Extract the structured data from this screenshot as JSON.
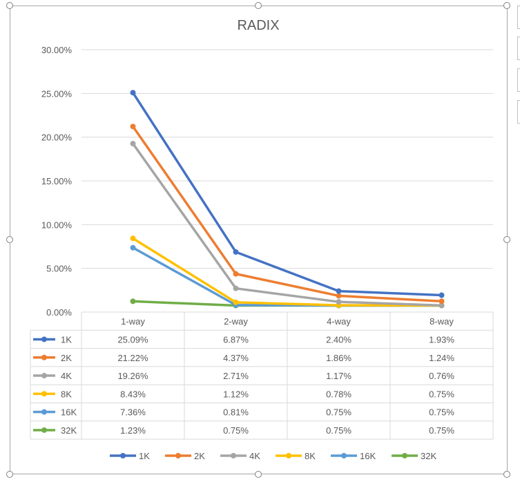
{
  "chart_data": {
    "type": "line",
    "title": "RADIX",
    "categories": [
      "1-way",
      "2-way",
      "4-way",
      "8-way"
    ],
    "y_ticks": [
      "0.00%",
      "5.00%",
      "10.00%",
      "15.00%",
      "20.00%",
      "25.00%",
      "30.00%"
    ],
    "ylim": [
      0,
      30
    ],
    "grid": true,
    "legend_position": "bottom",
    "data_table": true,
    "series": [
      {
        "name": "1K",
        "color": "#4472c4",
        "values": [
          25.09,
          6.87,
          2.4,
          1.93
        ],
        "labels": [
          "25.09%",
          "6.87%",
          "2.40%",
          "1.93%"
        ]
      },
      {
        "name": "2K",
        "color": "#ed7d31",
        "values": [
          21.22,
          4.37,
          1.86,
          1.24
        ],
        "labels": [
          "21.22%",
          "4.37%",
          "1.86%",
          "1.24%"
        ]
      },
      {
        "name": "4K",
        "color": "#a5a5a5",
        "values": [
          19.26,
          2.71,
          1.17,
          0.76
        ],
        "labels": [
          "19.26%",
          "2.71%",
          "1.17%",
          "0.76%"
        ]
      },
      {
        "name": "8K",
        "color": "#ffc000",
        "values": [
          8.43,
          1.12,
          0.78,
          0.75
        ],
        "labels": [
          "8.43%",
          "1.12%",
          "0.78%",
          "0.75%"
        ]
      },
      {
        "name": "16K",
        "color": "#5b9bd5",
        "values": [
          7.36,
          0.81,
          0.75,
          0.75
        ],
        "labels": [
          "7.36%",
          "0.81%",
          "0.75%",
          "0.75%"
        ]
      },
      {
        "name": "32K",
        "color": "#70ad47",
        "values": [
          1.23,
          0.75,
          0.75,
          0.75
        ],
        "labels": [
          "1.23%",
          "0.75%",
          "0.75%",
          "0.75%"
        ]
      }
    ]
  }
}
